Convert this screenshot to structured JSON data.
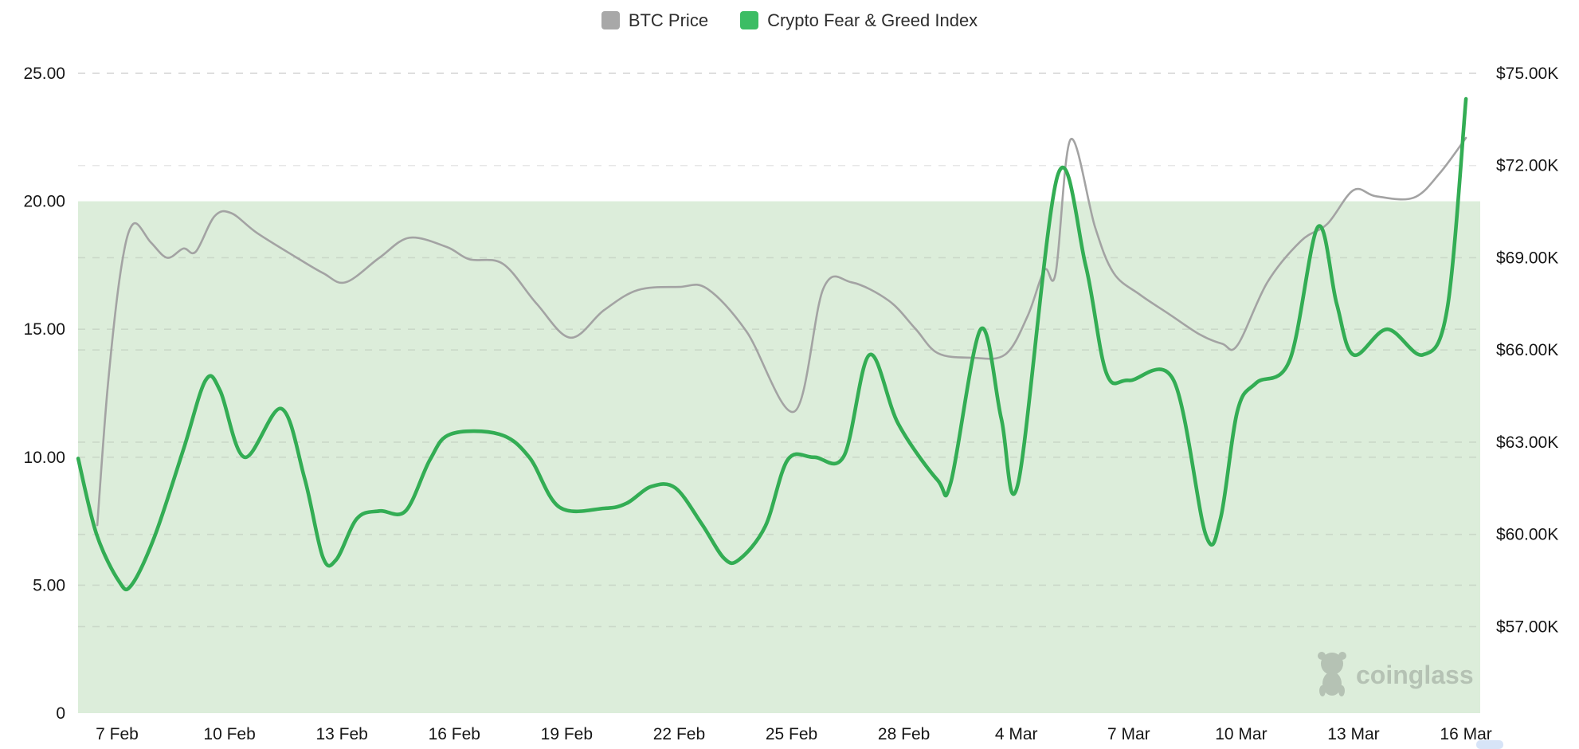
{
  "legend": {
    "items": [
      {
        "id": "btc-price",
        "label": "BTC Price",
        "color": "#a8a8a8"
      },
      {
        "id": "fear-greed",
        "label": "Crypto Fear & Greed Index",
        "color": "#3cbd64"
      }
    ]
  },
  "watermark": {
    "text": "coinglass",
    "color": "#8f998f"
  },
  "bottom_right_fragment_color": "#d7e4f7",
  "chart_data": {
    "type": "line",
    "title": "",
    "x_axis": {
      "labels": [
        "7 Feb",
        "10 Feb",
        "13 Feb",
        "16 Feb",
        "19 Feb",
        "22 Feb",
        "25 Feb",
        "28 Feb",
        "4 Mar",
        "7 Mar",
        "10 Mar",
        "13 Mar",
        "16 Mar"
      ],
      "label_day_positions": [
        0,
        3,
        6,
        9,
        12,
        15,
        18,
        21,
        24,
        27,
        30,
        33,
        36
      ]
    },
    "left_axis": {
      "name": "Crypto Fear & Greed Index",
      "range": [
        0,
        25
      ],
      "ticks": [
        {
          "label": "25.00",
          "value": 25
        },
        {
          "label": "20.00",
          "value": 20
        },
        {
          "label": "15.00",
          "value": 15
        },
        {
          "label": "10.00",
          "value": 10
        },
        {
          "label": "5.00",
          "value": 5
        },
        {
          "label": "0",
          "value": 0
        }
      ]
    },
    "right_axis": {
      "name": "BTC Price",
      "ticks": [
        {
          "label": "$75.00K",
          "value": 75
        },
        {
          "label": "$72.00K",
          "value": 72
        },
        {
          "label": "$69.00K",
          "value": 69
        },
        {
          "label": "$66.00K",
          "value": 66
        },
        {
          "label": "$63.00K",
          "value": 63
        },
        {
          "label": "$60.00K",
          "value": 60
        },
        {
          "label": "$57.00K",
          "value": 57
        }
      ]
    },
    "band": {
      "axis": "left",
      "from": 0,
      "to": 20,
      "color": "#dcedda"
    },
    "grid": {
      "dashed": true,
      "color": "rgba(120,120,120,0.18)"
    },
    "series": [
      {
        "name": "BTC Price",
        "axis": "right",
        "unit": "USD thousands",
        "color": "#a3a3a3",
        "width": 2.6,
        "points": [
          [
            -0.53,
            60.3
          ],
          [
            -0.25,
            64.8
          ],
          [
            0.1,
            68.6
          ],
          [
            0.43,
            70.1
          ],
          [
            0.9,
            69.5
          ],
          [
            1.34,
            69.0
          ],
          [
            1.77,
            69.3
          ],
          [
            2.1,
            69.2
          ],
          [
            2.6,
            70.35
          ],
          [
            3.05,
            70.45
          ],
          [
            3.74,
            69.8
          ],
          [
            4.8,
            69.0
          ],
          [
            5.5,
            68.5
          ],
          [
            6.1,
            68.2
          ],
          [
            7.0,
            69.0
          ],
          [
            7.8,
            69.65
          ],
          [
            8.8,
            69.35
          ],
          [
            9.4,
            68.95
          ],
          [
            10.3,
            68.8
          ],
          [
            11.2,
            67.5
          ],
          [
            12.1,
            66.4
          ],
          [
            13.0,
            67.3
          ],
          [
            13.9,
            67.95
          ],
          [
            15.0,
            68.05
          ],
          [
            15.74,
            68.0
          ],
          [
            16.8,
            66.6
          ],
          [
            18.08,
            64.0
          ],
          [
            18.85,
            68.0
          ],
          [
            19.6,
            68.2
          ],
          [
            20.6,
            67.6
          ],
          [
            21.3,
            66.7
          ],
          [
            21.9,
            65.9
          ],
          [
            22.8,
            65.75
          ],
          [
            23.7,
            65.85
          ],
          [
            24.3,
            67.1
          ],
          [
            24.75,
            68.6
          ],
          [
            25.05,
            68.5
          ],
          [
            25.45,
            72.85
          ],
          [
            26.1,
            70.0
          ],
          [
            26.6,
            68.5
          ],
          [
            27.3,
            67.8
          ],
          [
            28.1,
            67.15
          ],
          [
            28.9,
            66.5
          ],
          [
            29.5,
            66.2
          ],
          [
            29.9,
            66.15
          ],
          [
            30.7,
            68.2
          ],
          [
            31.6,
            69.55
          ],
          [
            32.3,
            70.1
          ],
          [
            33.0,
            71.2
          ],
          [
            33.6,
            71.0
          ],
          [
            34.6,
            70.95
          ],
          [
            35.3,
            71.75
          ],
          [
            36.0,
            72.9
          ]
        ]
      },
      {
        "name": "Crypto Fear & Greed Index",
        "axis": "left",
        "unit": "index",
        "color": "#33ad54",
        "width": 4.6,
        "points": [
          [
            -1.04,
            9.95
          ],
          [
            -0.55,
            7.0
          ],
          [
            0.05,
            5.15
          ],
          [
            0.38,
            5.0
          ],
          [
            1.0,
            6.9
          ],
          [
            1.77,
            10.3
          ],
          [
            2.36,
            13.0
          ],
          [
            2.75,
            12.6
          ],
          [
            3.4,
            10.0
          ],
          [
            4.38,
            11.9
          ],
          [
            5.0,
            9.2
          ],
          [
            5.49,
            6.1
          ],
          [
            5.85,
            6.0
          ],
          [
            6.4,
            7.6
          ],
          [
            7.0,
            7.9
          ],
          [
            7.7,
            7.9
          ],
          [
            8.35,
            9.9
          ],
          [
            8.9,
            10.9
          ],
          [
            10.2,
            10.9
          ],
          [
            11.0,
            10.0
          ],
          [
            11.8,
            8.05
          ],
          [
            13.0,
            8.0
          ],
          [
            13.6,
            8.2
          ],
          [
            14.25,
            8.85
          ],
          [
            14.9,
            8.8
          ],
          [
            15.6,
            7.4
          ],
          [
            16.2,
            6.05
          ],
          [
            16.6,
            6.0
          ],
          [
            17.3,
            7.3
          ],
          [
            17.9,
            9.9
          ],
          [
            18.6,
            10.0
          ],
          [
            19.4,
            10.05
          ],
          [
            20.08,
            14.0
          ],
          [
            20.85,
            11.3
          ],
          [
            21.9,
            9.1
          ],
          [
            22.25,
            9.0
          ],
          [
            23.05,
            15.0
          ],
          [
            23.6,
            11.5
          ],
          [
            24.05,
            9.0
          ],
          [
            25.1,
            21.0
          ],
          [
            25.85,
            17.5
          ],
          [
            26.4,
            13.3
          ],
          [
            27.0,
            13.0
          ],
          [
            28.2,
            13.0
          ],
          [
            29.05,
            7.0
          ],
          [
            29.45,
            7.6
          ],
          [
            29.9,
            11.8
          ],
          [
            30.4,
            12.9
          ],
          [
            31.3,
            13.8
          ],
          [
            32.05,
            19.0
          ],
          [
            32.55,
            16.0
          ],
          [
            33.0,
            14.0
          ],
          [
            33.9,
            15.0
          ],
          [
            34.85,
            14.0
          ],
          [
            35.5,
            15.8
          ],
          [
            36.0,
            24.0
          ]
        ]
      }
    ]
  }
}
